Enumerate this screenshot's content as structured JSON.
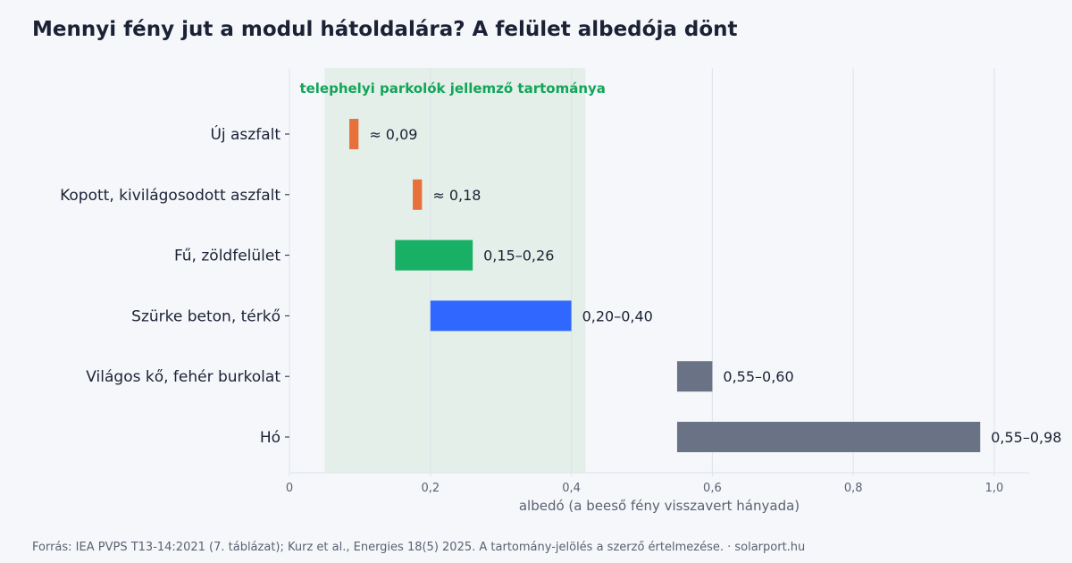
{
  "title": "Mennyi fény jut a modul hátoldalára? A felület albedója dönt",
  "footer": "Forrás: IEA PVPS T13-14:2021 (7. táblázat); Kurz et al., Energies 18(5) 2025. A tartomány-jelölés a szerző értelmezése. · solarport.hu",
  "colors": {
    "background": "#f5f7fa",
    "band": "#e3efe8",
    "band_label": "#12a55a",
    "grid": "#dde3ec",
    "text": "#1b2235",
    "muted": "#5a6272"
  },
  "chart_data": {
    "type": "bar",
    "orientation": "horizontal-range",
    "xlabel": "albedó (a beeső fény visszavert hányada)",
    "xlim": [
      0,
      1.05
    ],
    "xticks": [
      0,
      0.2,
      0.4,
      0.6,
      0.8,
      1.0
    ],
    "xtick_labels": [
      "0",
      "0,2",
      "0,4",
      "0,6",
      "0,8",
      "1,0"
    ],
    "grid": "vertical",
    "band": {
      "start": 0.05,
      "end": 0.42,
      "label": "telephelyi parkolók jellemző tartománya"
    },
    "categories": [
      "Új aszfalt",
      "Kopott, kivilágosodott aszfalt",
      "Fű, zöldfelület",
      "Szürke beton, térkő",
      "Világos kő, fehér burkolat",
      "Hó"
    ],
    "ranges": [
      [
        0.085,
        0.098
      ],
      [
        0.175,
        0.188
      ],
      [
        0.15,
        0.26
      ],
      [
        0.2,
        0.4
      ],
      [
        0.55,
        0.6
      ],
      [
        0.55,
        0.98
      ]
    ],
    "value_labels": [
      "≈ 0,09",
      "≈ 0,18",
      "0,15–0,26",
      "0,20–0,40",
      "0,55–0,60",
      "0,55–0,98"
    ],
    "bar_colors": [
      "#e8703a",
      "#e8703a",
      "#17b065",
      "#3068ff",
      "#6a7385",
      "#6a7385"
    ]
  }
}
